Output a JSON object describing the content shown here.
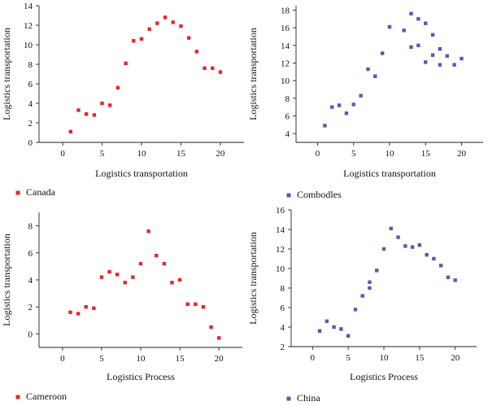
{
  "chart_data": [
    {
      "type": "scatter",
      "xlabel": "Logistics transportation",
      "ylabel": "Logistics transportation",
      "xlim": [
        -3,
        23
      ],
      "ylim": [
        0,
        14
      ],
      "xticks": [
        0,
        5,
        10,
        15,
        20
      ],
      "yticks": [
        0,
        2,
        4,
        6,
        8,
        10,
        12,
        14
      ],
      "grid": false,
      "legend_position": "bottom-left",
      "series": [
        {
          "name": "Canada",
          "color": "#e8262b",
          "marker": "square",
          "x": [
            1,
            2,
            3,
            4,
            5,
            6,
            7,
            8,
            9,
            10,
            11,
            12,
            13,
            14,
            15,
            16,
            17,
            18,
            19,
            20
          ],
          "y": [
            1.1,
            3.3,
            2.9,
            2.8,
            4.0,
            3.8,
            5.6,
            8.1,
            10.4,
            10.6,
            11.6,
            12.2,
            12.8,
            12.3,
            11.9,
            10.7,
            9.3,
            7.6,
            7.6,
            7.2
          ]
        }
      ]
    },
    {
      "type": "scatter",
      "xlabel": "Logistics transportation",
      "ylabel": "Logistics transportation",
      "xlim": [
        -3,
        23
      ],
      "ylim": [
        3,
        18.5
      ],
      "xticks": [
        0,
        5,
        10,
        15,
        20
      ],
      "yticks": [
        4,
        6,
        8,
        10,
        12,
        14,
        16,
        18
      ],
      "grid": false,
      "legend_position": "bottom-left",
      "series": [
        {
          "name": "Combodles",
          "color": "#5b57b0",
          "marker": "square",
          "x": [
            1,
            2,
            3,
            4,
            5,
            6,
            7,
            8,
            9,
            10,
            12,
            13,
            13,
            14,
            14,
            15,
            15,
            16,
            16,
            17,
            17,
            18,
            19,
            20
          ],
          "y": [
            4.9,
            7.0,
            7.2,
            6.3,
            7.3,
            8.3,
            11.3,
            10.5,
            13.1,
            16.1,
            15.7,
            17.6,
            13.8,
            17.0,
            14.0,
            16.5,
            12.1,
            15.2,
            12.9,
            13.6,
            11.8,
            12.8,
            11.8,
            12.5
          ]
        }
      ]
    },
    {
      "type": "scatter",
      "xlabel": "Logistics Process",
      "ylabel": "Logistics transportation",
      "xlim": [
        -3,
        23
      ],
      "ylim": [
        -1,
        9
      ],
      "xticks": [
        0,
        5,
        10,
        15,
        20
      ],
      "yticks": [
        0,
        2,
        4,
        6,
        8
      ],
      "grid": false,
      "legend_position": "bottom-left",
      "series": [
        {
          "name": "Cameroon",
          "color": "#e8262b",
          "marker": "square",
          "x": [
            1,
            2,
            3,
            4,
            5,
            6,
            7,
            8,
            9,
            10,
            11,
            12,
            13,
            14,
            15,
            16,
            17,
            18,
            19,
            20
          ],
          "y": [
            1.6,
            1.5,
            2.0,
            1.9,
            4.2,
            4.6,
            4.4,
            3.8,
            4.2,
            5.2,
            7.6,
            5.8,
            5.2,
            3.8,
            4.0,
            2.2,
            2.2,
            2.0,
            0.5,
            -0.3
          ]
        }
      ]
    },
    {
      "type": "scatter",
      "xlabel": "Logistics Process",
      "ylabel": "Logistics transportation",
      "xlim": [
        -3,
        23
      ],
      "ylim": [
        2,
        16
      ],
      "xticks": [
        0,
        5,
        10,
        15,
        20
      ],
      "yticks": [
        2,
        4,
        6,
        8,
        10,
        12,
        14,
        16
      ],
      "grid": false,
      "legend_position": "bottom-left",
      "series": [
        {
          "name": "China",
          "color": "#5b57b0",
          "marker": "square",
          "x": [
            1,
            2,
            3,
            4,
            5,
            6,
            7,
            8,
            8,
            9,
            10,
            11,
            12,
            13,
            14,
            15,
            16,
            17,
            18,
            19,
            20
          ],
          "y": [
            3.6,
            4.6,
            4.0,
            3.8,
            3.1,
            5.8,
            7.2,
            8.0,
            8.6,
            9.8,
            12.0,
            14.1,
            13.2,
            12.3,
            12.2,
            12.4,
            11.4,
            11.0,
            10.3,
            9.1,
            8.8
          ]
        }
      ]
    }
  ]
}
